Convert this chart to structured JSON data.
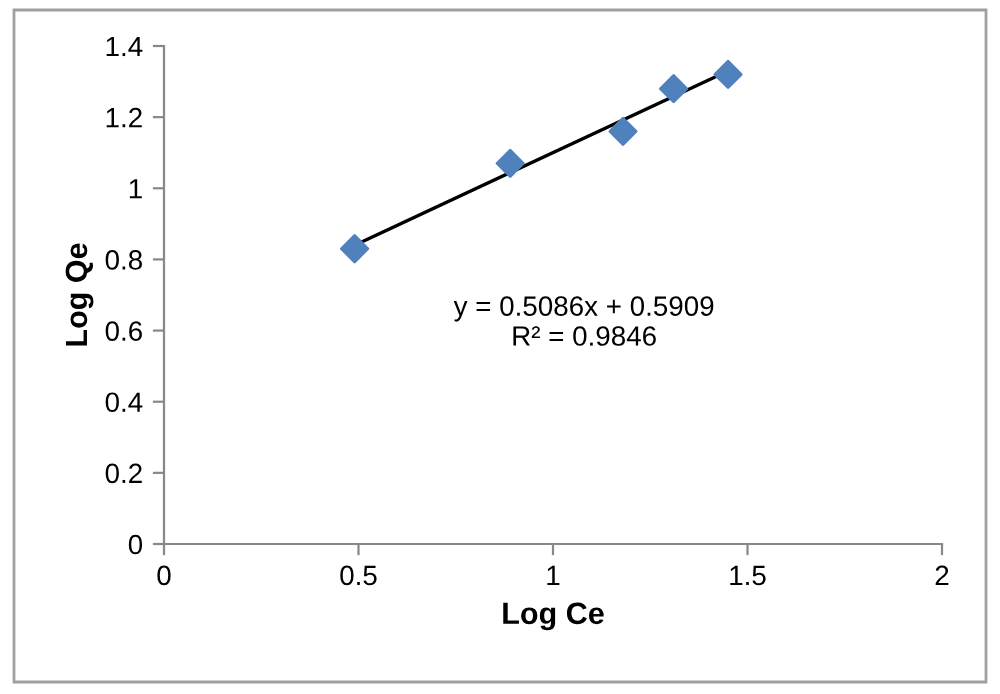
{
  "chart_data": {
    "type": "scatter",
    "xlabel": "Log Ce",
    "ylabel": "Log Qe",
    "series": [
      {
        "color": "#4f81bd",
        "marker": "diamond",
        "x": [
          0.49,
          0.89,
          1.18,
          1.31,
          1.45
        ],
        "values": [
          0.83,
          1.07,
          1.16,
          1.28,
          1.32
        ]
      },
      {
        "type": "line",
        "color": "#000000",
        "marker": "none",
        "x": [
          0.49,
          1.45
        ],
        "values": [
          0.84,
          1.33
        ]
      }
    ],
    "annotations": [
      "y = 0.5086x + 0.5909\nR² = 0.9846"
    ],
    "xlim": [
      0,
      2
    ],
    "xticks": [
      0,
      0.5,
      1,
      1.5,
      2
    ],
    "ylim": [
      0,
      1.4
    ],
    "yticks": [
      0,
      0.2,
      0.4,
      0.6,
      0.8,
      1,
      1.2,
      1.4
    ],
    "grid": false,
    "legend": false
  }
}
